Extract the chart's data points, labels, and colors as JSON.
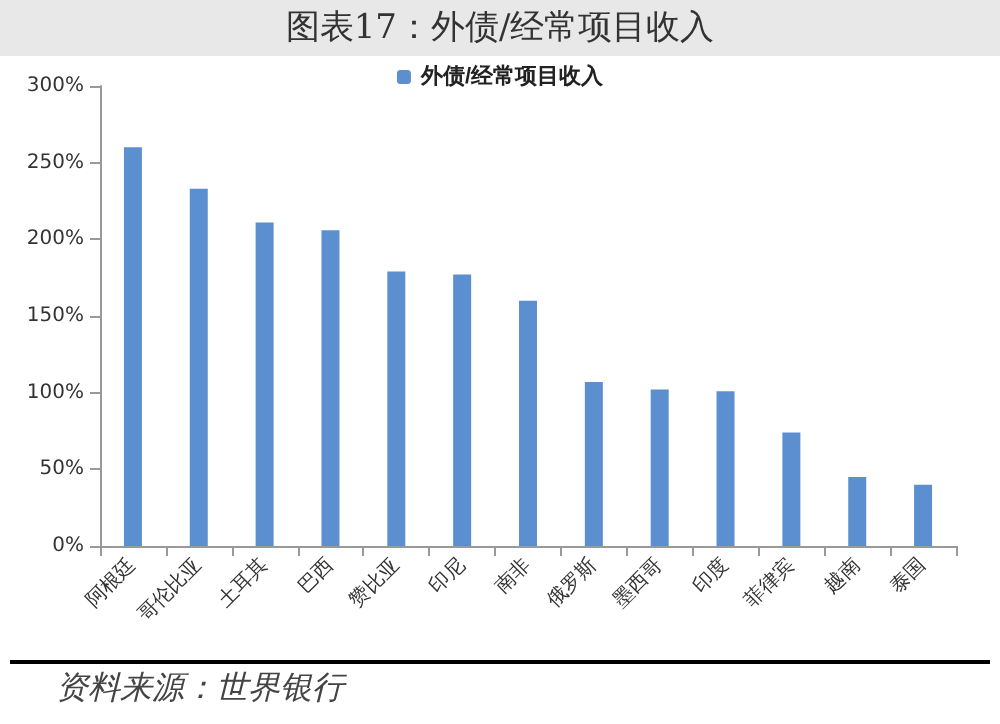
{
  "chart_data": {
    "type": "bar",
    "title": "图表17：外债/经常项目收入",
    "categories": [
      "阿根廷",
      "哥伦比亚",
      "土耳其",
      "巴西",
      "赞比亚",
      "印尼",
      "南非",
      "俄罗斯",
      "墨西哥",
      "印度",
      "菲律宾",
      "越南",
      "泰国"
    ],
    "series": [
      {
        "name": "外债/经常项目收入",
        "color": "#5b8fd0",
        "values": [
          260,
          233,
          211,
          206,
          179,
          177,
          160,
          107,
          102,
          101,
          74,
          45,
          40
        ]
      }
    ],
    "ylim": [
      0,
      300
    ],
    "yticks": [
      {
        "value": 0,
        "label": "0%"
      },
      {
        "value": 50,
        "label": "50%"
      },
      {
        "value": 100,
        "label": "100%"
      },
      {
        "value": 150,
        "label": "150%"
      },
      {
        "value": 200,
        "label": "200%"
      },
      {
        "value": 250,
        "label": "250%"
      },
      {
        "value": 300,
        "label": "300%"
      }
    ],
    "grid": false,
    "legend": "top",
    "annotations": [
      "资料来源：世界银行"
    ]
  }
}
